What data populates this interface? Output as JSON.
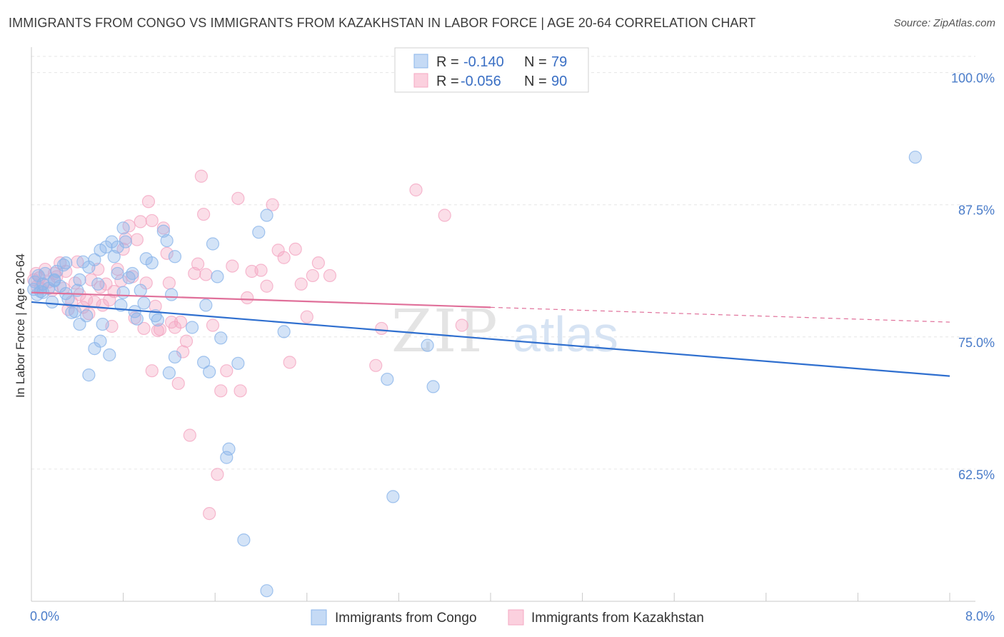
{
  "title": "IMMIGRANTS FROM CONGO VS IMMIGRANTS FROM KAZAKHSTAN IN LABOR FORCE | AGE 20-64 CORRELATION CHART",
  "source": "Source: ZipAtlas.com",
  "watermark": {
    "zip": "ZIP",
    "atlas": "atlas"
  },
  "chart_data": {
    "type": "scatter",
    "title": "IMMIGRANTS FROM CONGO VS IMMIGRANTS FROM KAZAKHSTAN IN LABOR FORCE | AGE 20-64 CORRELATION CHART",
    "xlabel": "",
    "ylabel": "In Labor Force | Age 20-64",
    "xlim": [
      0,
      8
    ],
    "ylim": [
      50,
      102
    ],
    "x_tick_labels": [
      "0.0%",
      "8.0%"
    ],
    "y_ticks": [
      62.5,
      75.0,
      87.5,
      100.0
    ],
    "y_tick_labels": [
      "62.5%",
      "75.0%",
      "87.5%",
      "100.0%"
    ],
    "grid": true,
    "legend_position": "top-center",
    "colors": {
      "congo": "#8bb5ea",
      "congo_line": "#2f6fcf",
      "kazakhstan": "#f4a8c3",
      "kazakhstan_line": "#e0709a"
    },
    "stats": [
      {
        "r_label": "R =",
        "r": "-0.140",
        "n_label": "N =",
        "n": "79"
      },
      {
        "r_label": "R =",
        "r": "-0.056",
        "n_label": "N =",
        "n": "90"
      }
    ],
    "series": [
      {
        "name": "Immigrants from Congo",
        "trend": {
          "x": [
            0,
            8
          ],
          "y": [
            78.3,
            71.3
          ],
          "solid_to": 8
        },
        "points": [
          [
            0.02,
            79.5
          ],
          [
            0.03,
            80.2
          ],
          [
            0.05,
            79.0
          ],
          [
            0.06,
            80.8
          ],
          [
            0.08,
            79.3
          ],
          [
            0.1,
            80.0
          ],
          [
            0.12,
            81.0
          ],
          [
            0.15,
            79.6
          ],
          [
            0.18,
            78.3
          ],
          [
            0.2,
            80.3
          ],
          [
            0.22,
            81.2
          ],
          [
            0.25,
            79.8
          ],
          [
            0.28,
            81.8
          ],
          [
            0.3,
            79.1
          ],
          [
            0.32,
            78.6
          ],
          [
            0.35,
            77.3
          ],
          [
            0.4,
            79.4
          ],
          [
            0.42,
            80.4
          ],
          [
            0.45,
            82.1
          ],
          [
            0.5,
            81.6
          ],
          [
            0.55,
            82.3
          ],
          [
            0.6,
            83.2
          ],
          [
            0.65,
            83.5
          ],
          [
            0.7,
            84.0
          ],
          [
            0.72,
            82.6
          ],
          [
            0.75,
            83.5
          ],
          [
            0.78,
            78.0
          ],
          [
            0.8,
            79.2
          ],
          [
            0.38,
            77.4
          ],
          [
            0.48,
            77.0
          ],
          [
            0.55,
            73.9
          ],
          [
            0.6,
            74.6
          ],
          [
            0.62,
            76.2
          ],
          [
            0.68,
            73.3
          ],
          [
            0.75,
            81.0
          ],
          [
            0.8,
            85.3
          ],
          [
            0.82,
            84.0
          ],
          [
            0.88,
            81.0
          ],
          [
            0.9,
            77.4
          ],
          [
            0.92,
            76.7
          ],
          [
            0.95,
            79.4
          ],
          [
            0.98,
            78.2
          ],
          [
            1.0,
            82.4
          ],
          [
            1.05,
            82.0
          ],
          [
            1.08,
            77.0
          ],
          [
            1.1,
            76.6
          ],
          [
            1.15,
            85.0
          ],
          [
            1.18,
            84.1
          ],
          [
            1.2,
            71.6
          ],
          [
            1.22,
            79.0
          ],
          [
            1.25,
            73.1
          ],
          [
            1.25,
            82.6
          ],
          [
            1.4,
            75.9
          ],
          [
            1.5,
            72.6
          ],
          [
            1.52,
            78.0
          ],
          [
            1.55,
            71.7
          ],
          [
            1.58,
            83.8
          ],
          [
            1.62,
            80.7
          ],
          [
            1.65,
            74.9
          ],
          [
            1.7,
            63.6
          ],
          [
            1.72,
            64.4
          ],
          [
            1.8,
            72.5
          ],
          [
            1.85,
            55.8
          ],
          [
            1.98,
            84.9
          ],
          [
            2.05,
            86.5
          ],
          [
            2.05,
            51.0
          ],
          [
            2.2,
            75.5
          ],
          [
            3.15,
            59.9
          ],
          [
            3.1,
            71.0
          ],
          [
            3.45,
            74.2
          ],
          [
            3.5,
            70.3
          ],
          [
            7.7,
            92.0
          ],
          [
            0.5,
            71.4
          ],
          [
            0.42,
            76.2
          ],
          [
            0.58,
            80.0
          ],
          [
            0.85,
            80.6
          ],
          [
            0.3,
            82.0
          ],
          [
            0.2,
            80.4
          ],
          [
            0.1,
            79.2
          ]
        ]
      },
      {
        "name": "Immigrants from Kazakhstan",
        "trend": {
          "x": [
            0,
            8
          ],
          "y": [
            79.2,
            76.4
          ],
          "solid_to": 4.0
        },
        "points": [
          [
            0.02,
            80.4
          ],
          [
            0.04,
            81.0
          ],
          [
            0.05,
            79.8
          ],
          [
            0.07,
            80.6
          ],
          [
            0.08,
            79.6
          ],
          [
            0.1,
            80.0
          ],
          [
            0.12,
            81.4
          ],
          [
            0.15,
            80.2
          ],
          [
            0.18,
            79.4
          ],
          [
            0.2,
            81.0
          ],
          [
            0.22,
            80.7
          ],
          [
            0.25,
            82.0
          ],
          [
            0.28,
            79.6
          ],
          [
            0.3,
            81.2
          ],
          [
            0.32,
            77.6
          ],
          [
            0.35,
            78.3
          ],
          [
            0.38,
            80.1
          ],
          [
            0.4,
            82.1
          ],
          [
            0.42,
            79.0
          ],
          [
            0.45,
            77.8
          ],
          [
            0.48,
            78.5
          ],
          [
            0.5,
            77.2
          ],
          [
            0.52,
            80.4
          ],
          [
            0.55,
            78.3
          ],
          [
            0.58,
            81.4
          ],
          [
            0.6,
            79.7
          ],
          [
            0.62,
            78.0
          ],
          [
            0.65,
            80.0
          ],
          [
            0.68,
            78.5
          ],
          [
            0.7,
            76.0
          ],
          [
            0.72,
            79.3
          ],
          [
            0.75,
            81.4
          ],
          [
            0.78,
            80.3
          ],
          [
            0.8,
            83.3
          ],
          [
            0.82,
            84.3
          ],
          [
            0.85,
            85.5
          ],
          [
            0.88,
            80.7
          ],
          [
            0.9,
            76.8
          ],
          [
            0.92,
            84.2
          ],
          [
            0.95,
            85.9
          ],
          [
            0.98,
            75.8
          ],
          [
            1.0,
            80.1
          ],
          [
            1.02,
            87.8
          ],
          [
            1.05,
            86.0
          ],
          [
            1.05,
            71.8
          ],
          [
            1.08,
            77.9
          ],
          [
            1.1,
            75.6
          ],
          [
            1.12,
            75.7
          ],
          [
            1.15,
            85.3
          ],
          [
            1.18,
            82.9
          ],
          [
            1.2,
            80.1
          ],
          [
            1.22,
            76.4
          ],
          [
            1.25,
            75.9
          ],
          [
            1.28,
            70.6
          ],
          [
            1.3,
            76.4
          ],
          [
            1.32,
            73.6
          ],
          [
            1.35,
            74.6
          ],
          [
            1.38,
            65.7
          ],
          [
            1.42,
            81.0
          ],
          [
            1.45,
            81.9
          ],
          [
            1.48,
            90.2
          ],
          [
            1.5,
            86.6
          ],
          [
            1.52,
            80.9
          ],
          [
            1.55,
            58.3
          ],
          [
            1.58,
            76.1
          ],
          [
            1.62,
            62.0
          ],
          [
            1.65,
            69.9
          ],
          [
            1.7,
            71.8
          ],
          [
            1.75,
            81.7
          ],
          [
            1.8,
            88.1
          ],
          [
            1.82,
            69.9
          ],
          [
            1.88,
            78.7
          ],
          [
            1.92,
            81.2
          ],
          [
            2.0,
            81.3
          ],
          [
            2.05,
            79.8
          ],
          [
            2.1,
            87.5
          ],
          [
            2.15,
            83.2
          ],
          [
            2.2,
            82.5
          ],
          [
            2.25,
            72.6
          ],
          [
            2.3,
            83.3
          ],
          [
            2.35,
            80.0
          ],
          [
            2.4,
            76.9
          ],
          [
            2.45,
            80.8
          ],
          [
            2.5,
            82.0
          ],
          [
            2.6,
            80.8
          ],
          [
            3.0,
            72.3
          ],
          [
            3.05,
            75.8
          ],
          [
            3.35,
            88.9
          ],
          [
            3.6,
            86.5
          ],
          [
            3.75,
            76.1
          ]
        ]
      }
    ]
  },
  "legend": {
    "congo_label": "Immigrants from Congo",
    "kazakhstan_label": "Immigrants from Kazakhstan"
  }
}
